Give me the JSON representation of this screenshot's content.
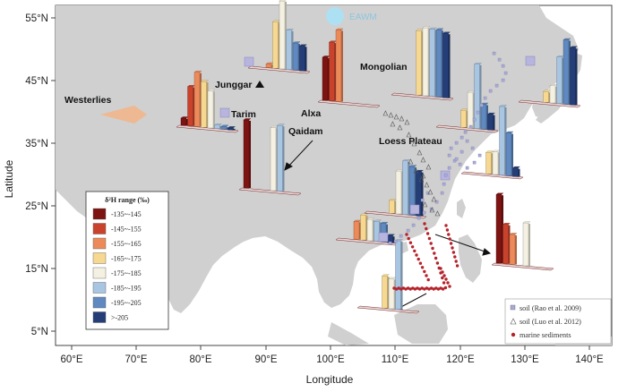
{
  "axes": {
    "xlabel": "Longitude",
    "ylabel": "Latitude",
    "x_ticks": [
      "60°E",
      "70°E",
      "80°E",
      "90°E",
      "100°E",
      "110°E",
      "120°E",
      "130°E",
      "140°E"
    ],
    "y_ticks": [
      "55°N",
      "45°N",
      "35°N",
      "25°N",
      "15°N",
      "5°N"
    ]
  },
  "labels": {
    "westerlies": "Westerlies",
    "eawm": "EAWM",
    "junggar": "Junggar",
    "mongolian": "Mongolian",
    "tarim": "Tarim",
    "alxa": "Alxa",
    "qaidam": "Qaidam",
    "loess": "Loess Plateau"
  },
  "legend": {
    "title": "δ²H range (‰)",
    "entries": [
      {
        "label": "-135~-145",
        "color": "#7d1412"
      },
      {
        "label": "-145~-155",
        "color": "#c9432c"
      },
      {
        "label": "-155~-165",
        "color": "#ec8a5a"
      },
      {
        "label": "-165~-175",
        "color": "#f6d891"
      },
      {
        "label": "-175~-185",
        "color": "#f4f1e2"
      },
      {
        "label": "-185~-195",
        "color": "#a8c5e2"
      },
      {
        "label": "-195~-205",
        "color": "#5f89c0"
      },
      {
        "label": ">-205",
        "color": "#253e78"
      }
    ]
  },
  "legend2": {
    "soil_rao": "soil (Rao et al. 2009)",
    "soil_luo": "soil (Luo et al. 2012)",
    "marine": "marine sediments"
  },
  "colors": {
    "ocean": "#ffffff",
    "land": "#d0d0d0",
    "marine_dot": "#b5222a",
    "square_marker": "#a9a9d6"
  }
}
